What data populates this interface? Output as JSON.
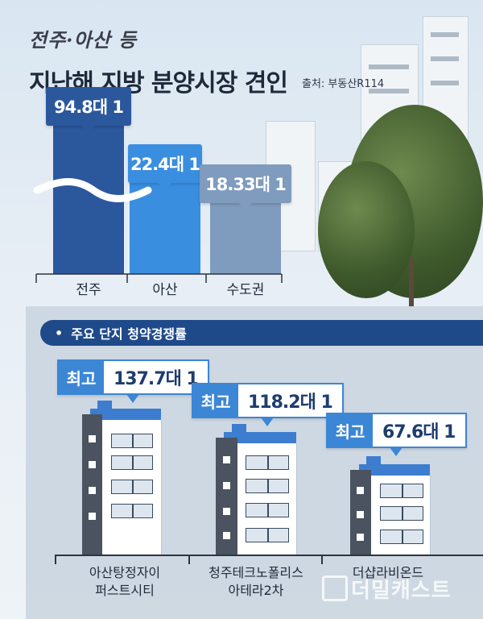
{
  "header": {
    "subtitle": "전주·아산 등",
    "title": "지난해 지방 분양시장 견인",
    "source": "출처: 부동산R114"
  },
  "colors": {
    "jeonju": "#2b579d",
    "asan": "#3a8ee0",
    "capital": "#7f9bbd",
    "accent": "#3c86d6",
    "panel_header": "#1f4a8a"
  },
  "chart_data": [
    {
      "type": "bar",
      "title": "지난해 지방 분양시장 견인",
      "categories": [
        "전주",
        "아산",
        "수도권"
      ],
      "values": [
        94.8,
        22.4,
        18.33
      ],
      "value_labels": [
        "94.8대 1",
        "22.4대 1",
        "18.33대 1"
      ],
      "axis_break": true,
      "bar_colors": [
        "#2b579d",
        "#3a8ee0",
        "#7f9bbd"
      ]
    },
    {
      "type": "bar",
      "title": "주요 단지 청약경쟁률",
      "categories": [
        "아산탕정자이 퍼스트시티",
        "청주테크노폴리스 아테라2차",
        "더샵라비온드"
      ],
      "values": [
        137.7,
        118.2,
        67.6
      ],
      "value_labels": [
        "137.7대 1",
        "118.2대 1",
        "67.6대 1"
      ]
    }
  ],
  "panel": {
    "header": "주요 단지 청약경쟁률",
    "tag": "최고",
    "complexes": [
      {
        "line1": "아산탕정자이",
        "line2": "퍼스트시티",
        "value": "137.7대 1"
      },
      {
        "line1": "청주테크노폴리스",
        "line2": "아테라2차",
        "value": "118.2대 1"
      },
      {
        "line1": "더샵라비온드",
        "line2": "",
        "value": "67.6대 1"
      }
    ]
  },
  "watermark": "더밀캐스트"
}
